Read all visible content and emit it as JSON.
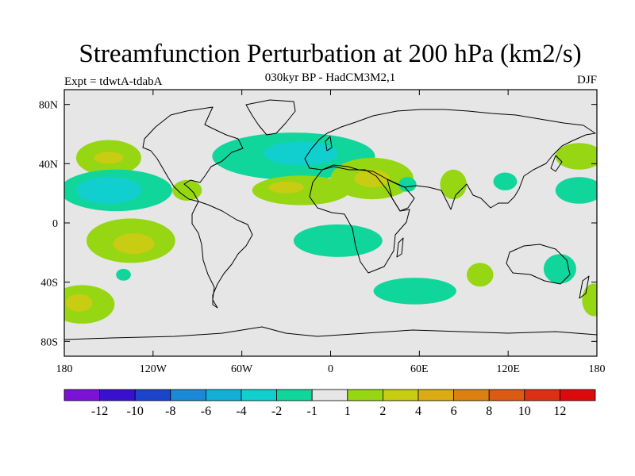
{
  "title": "Streamfunction Perturbation at 200 hPa (km2/s)",
  "subtitle": "030kyr BP - HadCM3M2,1",
  "experiment": "Expt = tdwtA-tdabA",
  "season": "DJF",
  "map": {
    "projection": "cylindrical equidistant",
    "lon_range": [
      -180,
      180
    ],
    "lat_range": [
      -90,
      90
    ],
    "background_color": "#e6e6e6",
    "x_ticks": [
      {
        "lon": -180,
        "label": "180"
      },
      {
        "lon": -120,
        "label": "120W"
      },
      {
        "lon": -60,
        "label": "60W"
      },
      {
        "lon": 0,
        "label": "0"
      },
      {
        "lon": 60,
        "label": "60E"
      },
      {
        "lon": 120,
        "label": "120E"
      },
      {
        "lon": 180,
        "label": "180"
      }
    ],
    "y_ticks": [
      {
        "lat": 80,
        "label": "80N"
      },
      {
        "lat": 40,
        "label": "40N"
      },
      {
        "lat": 0,
        "label": "0"
      },
      {
        "lat": -40,
        "label": "40S"
      },
      {
        "lat": -80,
        "label": "80S"
      }
    ]
  },
  "colorbar": {
    "colors": [
      "#7d12d6",
      "#3a10d0",
      "#1a44cc",
      "#1a8ad8",
      "#12b0d8",
      "#12cfcf",
      "#10d69c",
      "#e6e6e6",
      "#96d612",
      "#c8cc12",
      "#dcaa12",
      "#dc8012",
      "#dc5a12",
      "#dc3012",
      "#dc0a0a"
    ],
    "labels": [
      "-12",
      "-10",
      "-8",
      "-6",
      "-4",
      "-2",
      "-1",
      "1",
      "2",
      "4",
      "6",
      "8",
      "10",
      "12"
    ]
  },
  "anomaly_regions": [
    {
      "name": "north-pacific-positive",
      "level": 2,
      "lon": -150,
      "lat": 44,
      "rlon": 22,
      "rlat": 12
    },
    {
      "name": "north-pacific-core",
      "level": 4,
      "lon": -150,
      "lat": 44,
      "rlon": 10,
      "rlat": 4
    },
    {
      "name": "subtropical-pacific-negative",
      "level": -1,
      "lon": -145,
      "lat": 22,
      "rlon": 38,
      "rlat": 14
    },
    {
      "name": "subtropical-pacific-core",
      "level": -2,
      "lon": -150,
      "lat": 22,
      "rlon": 22,
      "rlat": 9
    },
    {
      "name": "north-atlantic-negative",
      "level": -1,
      "lon": -25,
      "lat": 45,
      "rlon": 55,
      "rlat": 16
    },
    {
      "name": "north-atlantic-core",
      "level": -2,
      "lon": -20,
      "lat": 47,
      "rlon": 25,
      "rlat": 8
    },
    {
      "name": "caribbean-positive",
      "level": 2,
      "lon": -97,
      "lat": 22,
      "rlon": 10,
      "rlat": 7
    },
    {
      "name": "subtropical-atlantic-positive",
      "level": 2,
      "lon": -20,
      "lat": 22,
      "rlon": 33,
      "rlat": 10
    },
    {
      "name": "subtropical-atlantic-core",
      "level": 4,
      "lon": -30,
      "lat": 24,
      "rlon": 12,
      "rlat": 4
    },
    {
      "name": "mediterranean-positive",
      "level": 2,
      "lon": 28,
      "lat": 30,
      "rlon": 28,
      "rlat": 14
    },
    {
      "name": "mediterranean-core",
      "level": 4,
      "lon": 28,
      "lat": 30,
      "rlon": 12,
      "rlat": 6
    },
    {
      "name": "caspian-negative",
      "level": -1,
      "lon": 52,
      "lat": 26,
      "rlon": 6,
      "rlat": 5
    },
    {
      "name": "india-positive",
      "level": 2,
      "lon": 83,
      "lat": 26,
      "rlon": 9,
      "rlat": 10
    },
    {
      "name": "south-china-negative",
      "level": -1,
      "lon": 118,
      "lat": 28,
      "rlon": 8,
      "rlat": 6
    },
    {
      "name": "west-pacific-positive",
      "level": 2,
      "lon": 168,
      "lat": 45,
      "rlon": 16,
      "rlat": 9
    },
    {
      "name": "west-pacific-negative",
      "level": -1,
      "lon": 168,
      "lat": 22,
      "rlon": 16,
      "rlat": 9
    },
    {
      "name": "south-atlantic-negative",
      "level": -1,
      "lon": 5,
      "lat": -12,
      "rlon": 30,
      "rlat": 11
    },
    {
      "name": "southern-indian-negative",
      "level": -1,
      "lon": 57,
      "lat": -46,
      "rlon": 28,
      "rlat": 9
    },
    {
      "name": "south-pacific-positive",
      "level": 2,
      "lon": -135,
      "lat": -12,
      "rlon": 30,
      "rlat": 15
    },
    {
      "name": "south-pacific-core",
      "level": 4,
      "lon": -133,
      "lat": -14,
      "rlon": 14,
      "rlat": 7
    },
    {
      "name": "south-pacific-small-negative",
      "level": -1,
      "lon": -140,
      "lat": -35,
      "rlon": 5,
      "rlat": 4
    },
    {
      "name": "southeast-pacific-positive",
      "level": 2,
      "lon": -168,
      "lat": -55,
      "rlon": 22,
      "rlat": 13
    },
    {
      "name": "southeast-pacific-core",
      "level": 4,
      "lon": -170,
      "lat": -54,
      "rlon": 9,
      "rlat": 6
    },
    {
      "name": "south-indian-positive",
      "level": 2,
      "lon": 101,
      "lat": -35,
      "rlon": 9,
      "rlat": 8
    },
    {
      "name": "australia-negative",
      "level": -1,
      "lon": 155,
      "lat": -31,
      "rlon": 11,
      "rlat": 10
    },
    {
      "name": "tasman-positive",
      "level": 2,
      "lon": 178,
      "lat": -52,
      "rlon": 8,
      "rlat": 11
    }
  ]
}
